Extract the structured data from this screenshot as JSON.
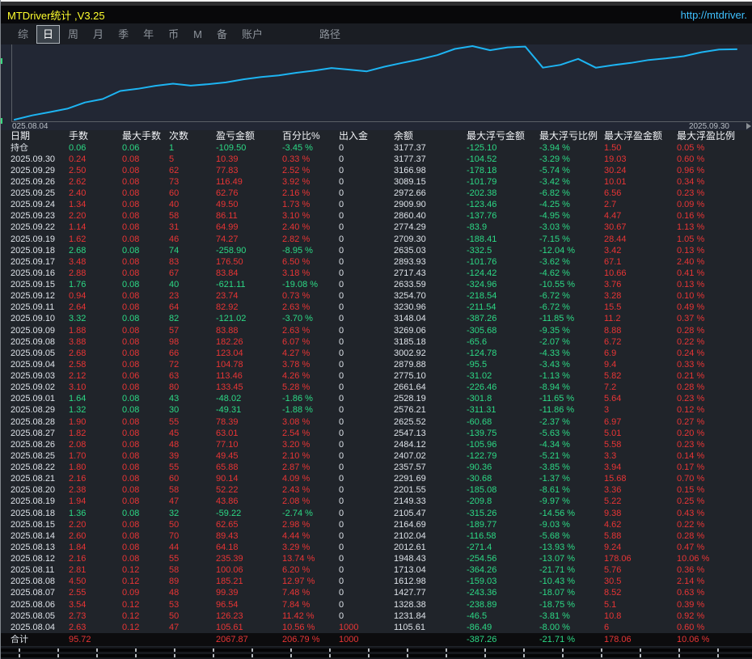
{
  "window": {
    "title": "MTDriver统计 ,V3.25",
    "link": "http://mtdriver."
  },
  "menu": {
    "items": [
      {
        "label": "综"
      },
      {
        "label": "日",
        "selected": true
      },
      {
        "label": "周"
      },
      {
        "label": "月"
      },
      {
        "label": "季"
      },
      {
        "label": "年"
      },
      {
        "label": "币"
      },
      {
        "label": "M"
      },
      {
        "label": "备"
      },
      {
        "label": "账户"
      },
      {
        "label": "路径",
        "gap": true
      }
    ]
  },
  "chart_data": {
    "type": "line",
    "title": "",
    "xlabel": "",
    "ylabel": "",
    "legend": [],
    "grid": false,
    "x_start_label": "025.08.04",
    "x_end_label": "2025.09.30",
    "line_color": "#1db4f2",
    "ylim": [
      1105.61,
      3269.06
    ],
    "dates": [
      "2025.08.04",
      "2025.08.05",
      "2025.08.06",
      "2025.08.07",
      "2025.08.08",
      "2025.08.11",
      "2025.08.12",
      "2025.08.13",
      "2025.08.14",
      "2025.08.15",
      "2025.08.18",
      "2025.08.19",
      "2025.08.20",
      "2025.08.21",
      "2025.08.22",
      "2025.08.25",
      "2025.08.26",
      "2025.08.27",
      "2025.08.28",
      "2025.08.29",
      "2025.09.01",
      "2025.09.02",
      "2025.09.03",
      "2025.09.04",
      "2025.09.05",
      "2025.09.08",
      "2025.09.09",
      "2025.09.10",
      "2025.09.11",
      "2025.09.12",
      "2025.09.15",
      "2025.09.16",
      "2025.09.17",
      "2025.09.18",
      "2025.09.19",
      "2025.09.22",
      "2025.09.23",
      "2025.09.24",
      "2025.09.25",
      "2025.09.26",
      "2025.09.29",
      "2025.09.30"
    ],
    "values": [
      1105.61,
      1231.84,
      1328.38,
      1427.77,
      1612.98,
      1713.04,
      1948.43,
      2012.61,
      2102.04,
      2164.69,
      2105.47,
      2149.33,
      2201.55,
      2291.69,
      2357.57,
      2407.02,
      2484.12,
      2547.13,
      2625.52,
      2576.21,
      2528.19,
      2661.64,
      2775.1,
      2879.88,
      3002.92,
      3185.18,
      3269.06,
      3148.04,
      3230.96,
      3254.7,
      2633.59,
      2717.43,
      2893.93,
      2635.03,
      2709.3,
      2774.29,
      2860.4,
      2909.9,
      2972.66,
      3089.15,
      3166.98,
      3177.37
    ]
  },
  "table": {
    "columns": [
      "日期",
      "手数",
      "最大手数",
      "次数",
      "盈亏金额",
      "百分比%",
      "出入金",
      "余额",
      "最大浮亏金额",
      "最大浮亏比例",
      "最大浮盈金额",
      "最大浮盈比例"
    ],
    "rows": [
      {
        "cells": [
          "持仓",
          "0.06",
          "0.06",
          "1",
          "-109.50",
          "-3.45 %",
          "0",
          "3177.37",
          "-125.10",
          "-3.94 %",
          "1.50",
          "0.05 %"
        ]
      },
      {
        "cells": [
          "2025.09.30",
          "0.24",
          "0.08",
          "5",
          "10.39",
          "0.33 %",
          "0",
          "3177.37",
          "-104.52",
          "-3.29 %",
          "19.03",
          "0.60 %"
        ]
      },
      {
        "cells": [
          "2025.09.29",
          "2.50",
          "0.08",
          "62",
          "77.83",
          "2.52 %",
          "0",
          "3166.98",
          "-178.18",
          "-5.74 %",
          "30.24",
          "0.96 %"
        ]
      },
      {
        "cells": [
          "2025.09.26",
          "2.62",
          "0.08",
          "73",
          "116.49",
          "3.92 %",
          "0",
          "3089.15",
          "-101.79",
          "-3.42 %",
          "10.01",
          "0.34 %"
        ]
      },
      {
        "cells": [
          "2025.09.25",
          "2.40",
          "0.08",
          "60",
          "62.76",
          "2.16 %",
          "0",
          "2972.66",
          "-202.38",
          "-6.82 %",
          "6.56",
          "0.23 %"
        ]
      },
      {
        "cells": [
          "2025.09.24",
          "1.34",
          "0.08",
          "40",
          "49.50",
          "1.73 %",
          "0",
          "2909.90",
          "-123.46",
          "-4.25 %",
          "2.7",
          "0.09 %"
        ]
      },
      {
        "cells": [
          "2025.09.23",
          "2.20",
          "0.08",
          "58",
          "86.11",
          "3.10 %",
          "0",
          "2860.40",
          "-137.76",
          "-4.95 %",
          "4.47",
          "0.16 %"
        ]
      },
      {
        "cells": [
          "2025.09.22",
          "1.14",
          "0.08",
          "31",
          "64.99",
          "2.40 %",
          "0",
          "2774.29",
          "-83.9",
          "-3.03 %",
          "30.67",
          "1.13 %"
        ]
      },
      {
        "cells": [
          "2025.09.19",
          "1.62",
          "0.08",
          "46",
          "74.27",
          "2.82 %",
          "0",
          "2709.30",
          "-188.41",
          "-7.15 %",
          "28.44",
          "1.05 %"
        ]
      },
      {
        "cells": [
          "2025.09.18",
          "2.68",
          "0.08",
          "74",
          "-258.90",
          "-8.95 %",
          "0",
          "2635.03",
          "-332.5",
          "-12.04 %",
          "3.42",
          "0.13 %"
        ]
      },
      {
        "cells": [
          "2025.09.17",
          "3.48",
          "0.08",
          "83",
          "176.50",
          "6.50 %",
          "0",
          "2893.93",
          "-101.76",
          "-3.62 %",
          "67.1",
          "2.40 %"
        ]
      },
      {
        "cells": [
          "2025.09.16",
          "2.88",
          "0.08",
          "67",
          "83.84",
          "3.18 %",
          "0",
          "2717.43",
          "-124.42",
          "-4.62 %",
          "10.66",
          "0.41 %"
        ]
      },
      {
        "cells": [
          "2025.09.15",
          "1.76",
          "0.08",
          "40",
          "-621.11",
          "-19.08 %",
          "0",
          "2633.59",
          "-324.96",
          "-10.55 %",
          "3.76",
          "0.13 %"
        ]
      },
      {
        "cells": [
          "2025.09.12",
          "0.94",
          "0.08",
          "23",
          "23.74",
          "0.73 %",
          "0",
          "3254.70",
          "-218.54",
          "-6.72 %",
          "3.28",
          "0.10 %"
        ]
      },
      {
        "cells": [
          "2025.09.11",
          "2.64",
          "0.08",
          "64",
          "82.92",
          "2.63 %",
          "0",
          "3230.96",
          "-211.54",
          "-6.72 %",
          "15.5",
          "0.49 %"
        ]
      },
      {
        "cells": [
          "2025.09.10",
          "3.32",
          "0.08",
          "82",
          "-121.02",
          "-3.70 %",
          "0",
          "3148.04",
          "-387.26",
          "-11.85 %",
          "11.2",
          "0.37 %"
        ]
      },
      {
        "cells": [
          "2025.09.09",
          "1.88",
          "0.08",
          "57",
          "83.88",
          "2.63 %",
          "0",
          "3269.06",
          "-305.68",
          "-9.35 %",
          "8.88",
          "0.28 %"
        ]
      },
      {
        "cells": [
          "2025.09.08",
          "3.88",
          "0.08",
          "98",
          "182.26",
          "6.07 %",
          "0",
          "3185.18",
          "-65.6",
          "-2.07 %",
          "6.72",
          "0.22 %"
        ]
      },
      {
        "cells": [
          "2025.09.05",
          "2.68",
          "0.08",
          "66",
          "123.04",
          "4.27 %",
          "0",
          "3002.92",
          "-124.78",
          "-4.33 %",
          "6.9",
          "0.24 %"
        ]
      },
      {
        "cells": [
          "2025.09.04",
          "2.58",
          "0.08",
          "72",
          "104.78",
          "3.78 %",
          "0",
          "2879.88",
          "-95.5",
          "-3.43 %",
          "9.4",
          "0.33 %"
        ]
      },
      {
        "cells": [
          "2025.09.03",
          "2.12",
          "0.06",
          "63",
          "113.46",
          "4.26 %",
          "0",
          "2775.10",
          "-31.02",
          "-1.13 %",
          "5.82",
          "0.21 %"
        ]
      },
      {
        "cells": [
          "2025.09.02",
          "3.10",
          "0.08",
          "80",
          "133.45",
          "5.28 %",
          "0",
          "2661.64",
          "-226.46",
          "-8.94 %",
          "7.2",
          "0.28 %"
        ]
      },
      {
        "cells": [
          "2025.09.01",
          "1.64",
          "0.08",
          "43",
          "-48.02",
          "-1.86 %",
          "0",
          "2528.19",
          "-301.8",
          "-11.65 %",
          "5.64",
          "0.23 %"
        ]
      },
      {
        "cells": [
          "2025.08.29",
          "1.32",
          "0.08",
          "30",
          "-49.31",
          "-1.88 %",
          "0",
          "2576.21",
          "-311.31",
          "-11.86 %",
          "3",
          "0.12 %"
        ]
      },
      {
        "cells": [
          "2025.08.28",
          "1.90",
          "0.08",
          "55",
          "78.39",
          "3.08 %",
          "0",
          "2625.52",
          "-60.68",
          "-2.37 %",
          "6.97",
          "0.27 %"
        ]
      },
      {
        "cells": [
          "2025.08.27",
          "1.82",
          "0.08",
          "45",
          "63.01",
          "2.54 %",
          "0",
          "2547.13",
          "-139.75",
          "-5.63 %",
          "5.01",
          "0.20 %"
        ]
      },
      {
        "cells": [
          "2025.08.26",
          "2.08",
          "0.08",
          "48",
          "77.10",
          "3.20 %",
          "0",
          "2484.12",
          "-105.96",
          "-4.34 %",
          "5.58",
          "0.23 %"
        ]
      },
      {
        "cells": [
          "2025.08.25",
          "1.70",
          "0.08",
          "39",
          "49.45",
          "2.10 %",
          "0",
          "2407.02",
          "-122.79",
          "-5.21 %",
          "3.3",
          "0.14 %"
        ]
      },
      {
        "cells": [
          "2025.08.22",
          "1.80",
          "0.08",
          "55",
          "65.88",
          "2.87 %",
          "0",
          "2357.57",
          "-90.36",
          "-3.85 %",
          "3.94",
          "0.17 %"
        ]
      },
      {
        "cells": [
          "2025.08.21",
          "2.16",
          "0.08",
          "60",
          "90.14",
          "4.09 %",
          "0",
          "2291.69",
          "-30.68",
          "-1.37 %",
          "15.68",
          "0.70 %"
        ]
      },
      {
        "cells": [
          "2025.08.20",
          "2.38",
          "0.08",
          "58",
          "52.22",
          "2.43 %",
          "0",
          "2201.55",
          "-185.08",
          "-8.61 %",
          "3.36",
          "0.15 %"
        ]
      },
      {
        "cells": [
          "2025.08.19",
          "1.94",
          "0.08",
          "47",
          "43.86",
          "2.08 %",
          "0",
          "2149.33",
          "-209.8",
          "-9.97 %",
          "5.22",
          "0.25 %"
        ]
      },
      {
        "cells": [
          "2025.08.18",
          "1.36",
          "0.08",
          "32",
          "-59.22",
          "-2.74 %",
          "0",
          "2105.47",
          "-315.26",
          "-14.56 %",
          "9.38",
          "0.43 %"
        ]
      },
      {
        "cells": [
          "2025.08.15",
          "2.20",
          "0.08",
          "50",
          "62.65",
          "2.98 %",
          "0",
          "2164.69",
          "-189.77",
          "-9.03 %",
          "4.62",
          "0.22 %"
        ]
      },
      {
        "cells": [
          "2025.08.14",
          "2.60",
          "0.08",
          "70",
          "89.43",
          "4.44 %",
          "0",
          "2102.04",
          "-116.58",
          "-5.68 %",
          "5.88",
          "0.28 %"
        ]
      },
      {
        "cells": [
          "2025.08.13",
          "1.84",
          "0.08",
          "44",
          "64.18",
          "3.29 %",
          "0",
          "2012.61",
          "-271.4",
          "-13.93 %",
          "9.24",
          "0.47 %"
        ]
      },
      {
        "cells": [
          "2025.08.12",
          "2.16",
          "0.08",
          "55",
          "235.39",
          "13.74 %",
          "0",
          "1948.43",
          "-254.56",
          "-13.07 %",
          "178.06",
          "10.06 %"
        ]
      },
      {
        "cells": [
          "2025.08.11",
          "2.81",
          "0.12",
          "58",
          "100.06",
          "6.20 %",
          "0",
          "1713.04",
          "-364.26",
          "-21.71 %",
          "5.76",
          "0.36 %"
        ]
      },
      {
        "cells": [
          "2025.08.08",
          "4.50",
          "0.12",
          "89",
          "185.21",
          "12.97 %",
          "0",
          "1612.98",
          "-159.03",
          "-10.43 %",
          "30.5",
          "2.14 %"
        ]
      },
      {
        "cells": [
          "2025.08.07",
          "2.55",
          "0.09",
          "48",
          "99.39",
          "7.48 %",
          "0",
          "1427.77",
          "-243.36",
          "-18.07 %",
          "8.52",
          "0.63 %"
        ]
      },
      {
        "cells": [
          "2025.08.06",
          "3.54",
          "0.12",
          "53",
          "96.54",
          "7.84 %",
          "0",
          "1328.38",
          "-238.89",
          "-18.75 %",
          "5.1",
          "0.39 %"
        ]
      },
      {
        "cells": [
          "2025.08.05",
          "2.73",
          "0.12",
          "50",
          "126.23",
          "11.42 %",
          "0",
          "1231.84",
          "-46.5",
          "-3.81 %",
          "10.8",
          "0.92 %"
        ]
      },
      {
        "cells": [
          "2025.08.04",
          "2.63",
          "0.12",
          "47",
          "105.61",
          "10.56 %",
          "1000",
          "1105.61",
          "-86.49",
          "-8.00 %",
          "6",
          "0.60 %"
        ]
      },
      {
        "cells": [
          "合计",
          "95.72",
          "",
          "",
          "2067.87",
          "206.79 %",
          "1000",
          "",
          "-387.26",
          "-21.71 %",
          "178.06",
          "10.06 %"
        ],
        "total": true
      }
    ]
  },
  "colors": {
    "profit_red": "#e83535",
    "loss_green": "#2cd985",
    "text_white": "#dde2e8",
    "title_yellow": "#ffff2e",
    "link_cyan": "#3fc1ff",
    "chart_line_cyan": "#1db4f2"
  }
}
